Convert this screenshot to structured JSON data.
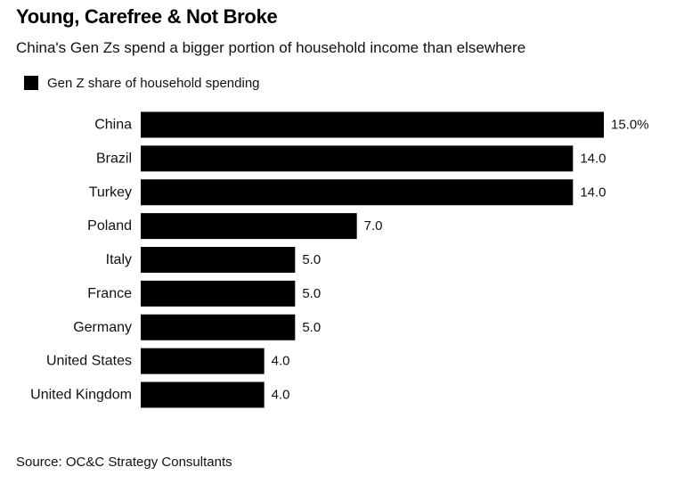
{
  "header": {
    "title": "Young, Carefree & Not Broke",
    "subtitle": "China's Gen Zs spend a bigger portion of household income than elsewhere"
  },
  "legend": {
    "label": "Gen Z share of household spending",
    "color": "#000000"
  },
  "footer": {
    "source": "Source: OC&C Strategy Consultants"
  },
  "chart_data": {
    "type": "bar",
    "orientation": "horizontal",
    "title": "Young, Carefree & Not Broke",
    "subtitle": "China's Gen Zs spend a bigger portion of household income than elsewhere",
    "xlabel": "",
    "ylabel": "",
    "xlim": [
      0,
      15
    ],
    "grid": false,
    "legend_position": "top-left",
    "categories": [
      "China",
      "Brazil",
      "Turkey",
      "Poland",
      "Italy",
      "France",
      "Germany",
      "United States",
      "United Kingdom"
    ],
    "series": [
      {
        "name": "Gen Z share of household spending",
        "color": "#000000",
        "values": [
          15.0,
          14.0,
          14.0,
          7.0,
          5.0,
          5.0,
          5.0,
          4.0,
          4.0
        ],
        "value_labels": [
          "15.0%",
          "14.0",
          "14.0",
          "7.0",
          "5.0",
          "5.0",
          "5.0",
          "4.0",
          "4.0"
        ]
      }
    ]
  }
}
